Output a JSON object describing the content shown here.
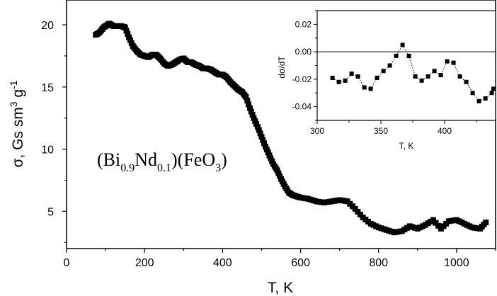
{
  "chart_data": [
    {
      "type": "scatter",
      "xlabel": "T, K",
      "ylabel_parts": [
        "σ, Gs sm",
        "3",
        " g",
        "-1"
      ],
      "xlim": [
        0,
        1100
      ],
      "ylim": [
        2,
        22
      ],
      "xticks": [
        "0",
        "200",
        "400",
        "600",
        "800",
        "1000"
      ],
      "yticks": [
        "5",
        "10",
        "15",
        "20"
      ],
      "annotation_parts": [
        "(Bi",
        "0.9",
        "Nd",
        "0.1",
        ")(FeO",
        "3",
        ")"
      ],
      "marker": "square",
      "color": "#000000",
      "series": [
        {
          "x": [
            75,
            85,
            95,
            105,
            110,
            120,
            130,
            140,
            150,
            160,
            170,
            180,
            190,
            200,
            210,
            220,
            230,
            240,
            250,
            260,
            270,
            280,
            290,
            300,
            310,
            320,
            330,
            340,
            350,
            360,
            370,
            380,
            390,
            400,
            410,
            420,
            430,
            440,
            450,
            460,
            470,
            480,
            490,
            500,
            510,
            520,
            530,
            540,
            550,
            560,
            570,
            580,
            590,
            600,
            620,
            640,
            660,
            680,
            700,
            720,
            740,
            760,
            780,
            800,
            820,
            840,
            860,
            880,
            900,
            920,
            940,
            960,
            980,
            1000,
            1020,
            1040,
            1060,
            1075
          ],
          "y": [
            19.2,
            19.4,
            19.8,
            20.0,
            20.1,
            19.9,
            19.9,
            19.9,
            19.8,
            19.0,
            18.3,
            17.9,
            17.6,
            17.5,
            17.4,
            17.6,
            17.6,
            17.3,
            16.9,
            16.7,
            16.8,
            17.0,
            17.2,
            17.3,
            17.0,
            17.0,
            16.8,
            16.7,
            16.5,
            16.5,
            16.4,
            16.2,
            16.0,
            16.0,
            15.8,
            15.4,
            15.1,
            14.8,
            14.6,
            14.2,
            13.3,
            12.5,
            11.8,
            11.0,
            10.2,
            9.5,
            8.8,
            8.3,
            7.6,
            7.0,
            6.5,
            6.3,
            6.2,
            6.1,
            6.0,
            5.8,
            5.7,
            5.8,
            5.9,
            5.8,
            5.2,
            4.5,
            4.0,
            3.7,
            3.5,
            3.3,
            3.4,
            3.8,
            3.6,
            3.9,
            4.3,
            3.6,
            4.2,
            4.3,
            4.0,
            3.7,
            3.6,
            4.1
          ]
        }
      ]
    },
    {
      "type": "line",
      "xlabel": "T, K",
      "ylabel": "dσ/dT",
      "xlim": [
        300,
        440
      ],
      "ylim": [
        -0.05,
        0.03
      ],
      "xticks": [
        "300",
        "350",
        "400"
      ],
      "yticks": [
        "0.02",
        "0.00",
        "-0.02",
        "-0.04"
      ],
      "reference_line_y": 0,
      "marker": "square",
      "line_style": "dotted",
      "color": "#000000",
      "series": [
        {
          "x": [
            312,
            317,
            322,
            327,
            332,
            337,
            342,
            347,
            352,
            357,
            362,
            367,
            372,
            377,
            382,
            387,
            392,
            397,
            402,
            407,
            412,
            417,
            422,
            427,
            432,
            437,
            441
          ],
          "y": [
            -0.019,
            -0.022,
            -0.021,
            -0.016,
            -0.018,
            -0.026,
            -0.027,
            -0.019,
            -0.014,
            -0.01,
            -0.003,
            0.005,
            -0.003,
            -0.018,
            -0.021,
            -0.018,
            -0.014,
            -0.017,
            -0.007,
            -0.008,
            -0.018,
            -0.022,
            -0.03,
            -0.036,
            -0.034,
            -0.03,
            -0.027
          ]
        }
      ]
    }
  ]
}
